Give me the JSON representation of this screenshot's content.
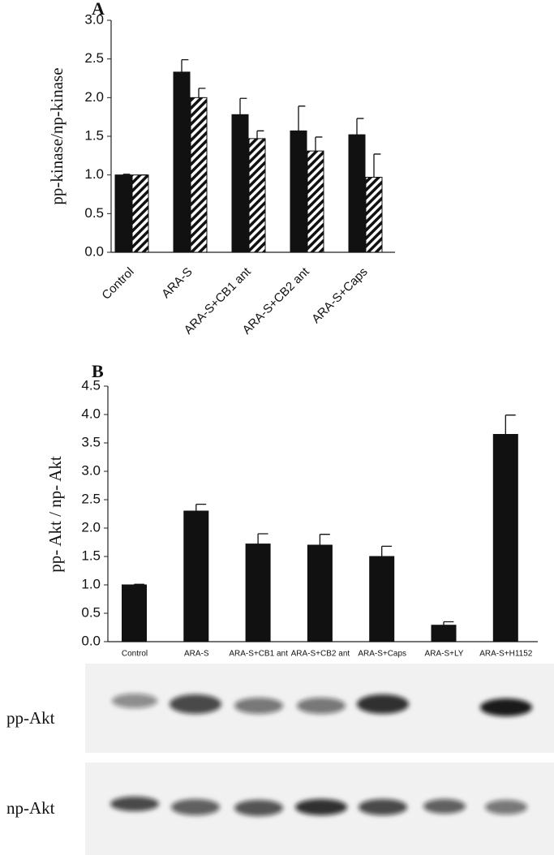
{
  "chart_data": [
    {
      "type": "bar",
      "label": "A",
      "y_label": "pp-kinase/np-kinase",
      "categories": [
        "Control",
        "ARA-S",
        "ARA-S+CB1 ant",
        "ARA-S+CB2 ant",
        "ARA-S+Caps"
      ],
      "series": [
        {
          "color": "#111111",
          "values": [
            1.0,
            2.33,
            1.78,
            1.57,
            1.52
          ],
          "errors": [
            0.01,
            0.16,
            0.21,
            0.32,
            0.21
          ]
        },
        {
          "color": "#111111",
          "hatch": true,
          "values": [
            1.0,
            2.0,
            1.47,
            1.31,
            0.97
          ],
          "errors": [
            0.0,
            0.12,
            0.1,
            0.18,
            0.3
          ]
        }
      ],
      "ylim": [
        0,
        3
      ],
      "yticks": [
        {
          "value": 0,
          "label": "0.0"
        },
        {
          "value": 0.5,
          "label": "0.5"
        },
        {
          "value": 1,
          "label": "1.0"
        },
        {
          "value": 1.5,
          "label": "1.5"
        },
        {
          "value": 2,
          "label": "2.0"
        },
        {
          "value": 2.5,
          "label": "2.5"
        },
        {
          "value": 3,
          "label": "3.0"
        }
      ]
    },
    {
      "type": "bar",
      "label": "B",
      "y_label": "pp- Akt / np- Akt",
      "categories": [
        "Control",
        "ARA-S",
        "ARA-S+CB1 ant",
        "ARA-S+CB2 ant",
        "ARA-S+Caps",
        "ARA-S+LY",
        "ARA-S+H1152"
      ],
      "series": [
        {
          "color": "#111111",
          "values": [
            1.0,
            2.3,
            1.72,
            1.7,
            1.5,
            0.29,
            3.65
          ],
          "errors": [
            0.01,
            0.12,
            0.18,
            0.19,
            0.18,
            0.06,
            0.34
          ]
        }
      ],
      "ylim": [
        0,
        4.5
      ],
      "yticks": [
        {
          "value": 0,
          "label": "0.0"
        },
        {
          "value": 0.5,
          "label": "0.5"
        },
        {
          "value": 1,
          "label": "1.0"
        },
        {
          "value": 1.5,
          "label": "1.5"
        },
        {
          "value": 2,
          "label": "2.0"
        },
        {
          "value": 2.5,
          "label": "2.5"
        },
        {
          "value": 3,
          "label": "3.0"
        },
        {
          "value": 3.5,
          "label": "3.5"
        },
        {
          "value": 4,
          "label": "4.0"
        },
        {
          "value": 4.5,
          "label": "4.5"
        }
      ]
    }
  ],
  "blots": [
    {
      "label": "pp-Akt"
    },
    {
      "label": "np-Akt"
    }
  ]
}
